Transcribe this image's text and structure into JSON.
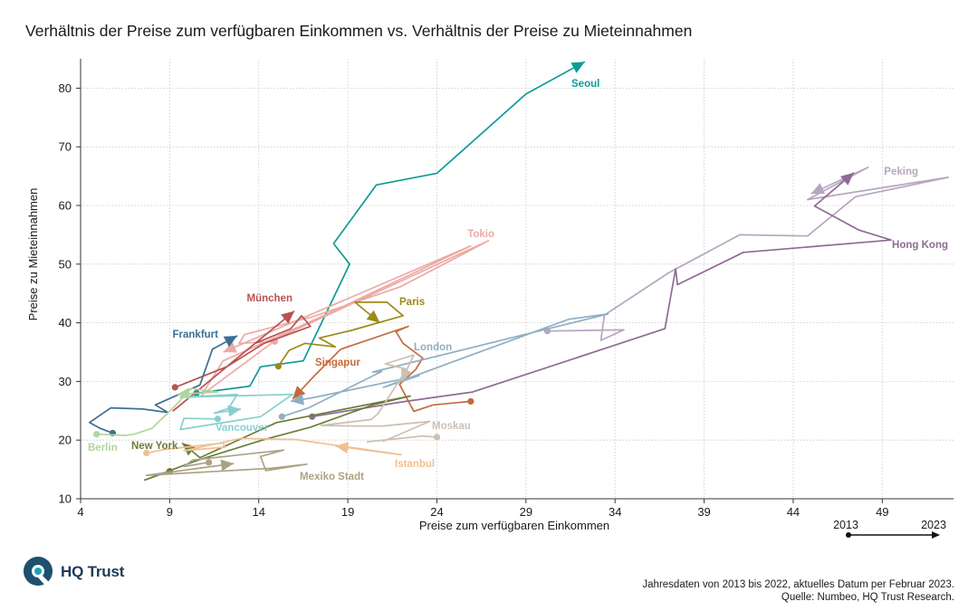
{
  "title": "Verhältnis der Preise zum verfügbaren Einkommen vs. Verhältnis der Preise zu Mieteinnahmen",
  "logo": {
    "text": "HQ Trust",
    "icon": "hq-trust-logo-icon"
  },
  "footnote": {
    "line1": "Jahresdaten von 2013 bis 2022, aktuelles Datum per Februar 2023.",
    "line2": "Quelle: Numbeo, HQ Trust Research."
  },
  "time_legend": {
    "start": "2013",
    "end": "2023"
  },
  "chart_data": {
    "type": "line",
    "title": "Verhältnis der Preise zum verfügbaren Einkommen vs. Verhältnis der Preise zu Mieteinnahmen",
    "xlabel": "Preise zum verfügbaren Einkommen",
    "ylabel": "Preise zu Mieteinnahmen",
    "xlim": [
      4,
      53
    ],
    "ylim": [
      10,
      85
    ],
    "xticks": [
      4,
      9,
      14,
      19,
      24,
      29,
      34,
      39,
      44,
      49
    ],
    "yticks": [
      10,
      20,
      30,
      40,
      50,
      60,
      70,
      80
    ],
    "grid": true,
    "series": [
      {
        "name": "Seoul",
        "color": "#0f9b95",
        "points": [
          [
            10.5,
            28
          ],
          [
            13.5,
            29.2
          ],
          [
            14.1,
            32.5
          ],
          [
            16.5,
            33.5
          ],
          [
            19.1,
            50
          ],
          [
            18.2,
            53.5
          ],
          [
            20.6,
            63.5
          ],
          [
            24,
            65.5
          ],
          [
            29,
            79
          ],
          [
            32.3,
            84.5
          ]
        ]
      },
      {
        "name": "Peking",
        "color": "#b7a6bf",
        "points": [
          [
            30.2,
            38.6
          ],
          [
            34.5,
            38.8
          ],
          [
            33.2,
            37
          ],
          [
            33.4,
            41.3
          ],
          [
            37,
            48.5
          ],
          [
            41,
            55
          ],
          [
            44.8,
            54.8
          ],
          [
            47.5,
            61.5
          ],
          [
            52.7,
            64.8
          ],
          [
            44.8,
            61
          ],
          [
            48.2,
            66.5
          ],
          [
            45,
            62
          ]
        ]
      },
      {
        "name": "Hong Kong",
        "color": "#8e6b93",
        "points": [
          [
            17,
            24
          ],
          [
            22,
            26.5
          ],
          [
            26,
            28.2
          ],
          [
            36.8,
            39
          ],
          [
            37.4,
            49.2
          ],
          [
            37.5,
            46.5
          ],
          [
            41.2,
            52
          ],
          [
            49.5,
            54.1
          ],
          [
            47.7,
            55.8
          ],
          [
            45.2,
            59.9
          ],
          [
            47.4,
            65.6
          ]
        ]
      },
      {
        "name": "Tokio",
        "color": "#ecaaa4",
        "points": [
          [
            14.9,
            36.8
          ],
          [
            12.9,
            36.5
          ],
          [
            13.2,
            38
          ],
          [
            17,
            41
          ],
          [
            22,
            46.2
          ],
          [
            26.9,
            54
          ],
          [
            15.2,
            37.6
          ],
          [
            10.8,
            27.7
          ],
          [
            12,
            33.5
          ],
          [
            18.2,
            42
          ],
          [
            25.9,
            53.1
          ],
          [
            12,
            35
          ]
        ]
      },
      {
        "name": "München",
        "color": "#b85250",
        "points": [
          [
            9.3,
            29
          ],
          [
            12.2,
            32.5
          ],
          [
            14.3,
            36.5
          ],
          [
            16.2,
            38.6
          ],
          [
            16.9,
            39.4
          ],
          [
            16.4,
            41.2
          ],
          [
            15.8,
            39
          ],
          [
            13.8,
            36.5
          ],
          [
            9.2,
            25
          ],
          [
            16,
            42
          ]
        ]
      },
      {
        "name": "Frankfurt",
        "color": "#3c6f91",
        "points": [
          [
            5.8,
            21.2
          ],
          [
            5.1,
            22
          ],
          [
            4.5,
            23
          ],
          [
            5.7,
            25.5
          ],
          [
            7.5,
            25.3
          ],
          [
            8.9,
            24.7
          ],
          [
            8.2,
            26
          ],
          [
            10.7,
            29.4
          ],
          [
            11.4,
            35.5
          ],
          [
            12.8,
            37.8
          ]
        ]
      },
      {
        "name": "Paris",
        "color": "#9d8a1a",
        "points": [
          [
            15.1,
            32.6
          ],
          [
            15.7,
            35.3
          ],
          [
            16.6,
            36.5
          ],
          [
            18.3,
            35.9
          ],
          [
            17.4,
            37.4
          ],
          [
            19.2,
            38.7
          ],
          [
            22.1,
            41.2
          ],
          [
            21.2,
            43.5
          ],
          [
            19.4,
            43.5
          ],
          [
            20.8,
            40
          ]
        ]
      },
      {
        "name": "Singapur",
        "color": "#c56a3a",
        "points": [
          [
            25.9,
            26.6
          ],
          [
            23.8,
            26
          ],
          [
            22.7,
            24.9
          ],
          [
            21.9,
            29.5
          ],
          [
            22.8,
            32
          ],
          [
            23.2,
            34
          ],
          [
            22.1,
            36.5
          ],
          [
            21.7,
            38.5
          ],
          [
            22.4,
            39.4
          ],
          [
            18.6,
            35.5
          ],
          [
            17.2,
            31.2
          ],
          [
            15.9,
            27
          ]
        ]
      },
      {
        "name": "London",
        "color": "#8fafc4",
        "points": [
          [
            15.3,
            24
          ],
          [
            16.8,
            25.5
          ],
          [
            20.9,
            31.7
          ],
          [
            20.4,
            31.6
          ],
          [
            33.6,
            41.5
          ],
          [
            31.4,
            40.6
          ],
          [
            21,
            29
          ],
          [
            23,
            31
          ],
          [
            17,
            27.2
          ],
          [
            15.8,
            26.6
          ]
        ]
      },
      {
        "name": "Vancouver",
        "color": "#87cfce",
        "points": [
          [
            11.7,
            23.6
          ],
          [
            9.8,
            23.7
          ],
          [
            9.6,
            21.8
          ],
          [
            14.1,
            24
          ],
          [
            15.9,
            27.8
          ],
          [
            9.6,
            27.3
          ],
          [
            12.8,
            27.8
          ],
          [
            12.3,
            25.4
          ],
          [
            11.5,
            24.6
          ],
          [
            13,
            25.3
          ]
        ]
      },
      {
        "name": "Berlin",
        "color": "#b1d69c",
        "points": [
          [
            4.9,
            21
          ],
          [
            6.5,
            20.8
          ],
          [
            7,
            21
          ],
          [
            8,
            22
          ],
          [
            9.3,
            25.8
          ],
          [
            10.2,
            28.8
          ],
          [
            11.7,
            28.2
          ],
          [
            9.4,
            27.8
          ]
        ]
      },
      {
        "name": "New York",
        "color": "#6a7d3a",
        "points": [
          [
            9,
            14.7
          ],
          [
            7.6,
            13.2
          ],
          [
            10.5,
            16.5
          ],
          [
            14.2,
            20
          ],
          [
            16.9,
            22.2
          ],
          [
            20.4,
            26
          ],
          [
            22.5,
            27.5
          ],
          [
            15,
            23
          ],
          [
            10.7,
            17
          ],
          [
            9.7,
            19.5
          ]
        ]
      },
      {
        "name": "Moskau",
        "color": "#cdbfb1",
        "points": [
          [
            24,
            20.5
          ],
          [
            23.2,
            20.7
          ],
          [
            20.1,
            19.7
          ],
          [
            21,
            20
          ],
          [
            21,
            19.8
          ],
          [
            23.6,
            23.2
          ],
          [
            21,
            22.4
          ],
          [
            19.3,
            22.4
          ],
          [
            17.5,
            22.5
          ],
          [
            20.3,
            23.5
          ],
          [
            20.7,
            24.5
          ],
          [
            22.3,
            32.1
          ],
          [
            21.1,
            33
          ],
          [
            22.7,
            34.5
          ],
          [
            22,
            30
          ]
        ]
      },
      {
        "name": "Mexiko Stadt",
        "color": "#aba286",
        "points": [
          [
            11.2,
            16.2
          ],
          [
            9.8,
            15.5
          ],
          [
            10.3,
            16.6
          ],
          [
            15.4,
            18.3
          ],
          [
            14.1,
            17.2
          ],
          [
            14.4,
            14.8
          ],
          [
            16.7,
            15.9
          ],
          [
            14.7,
            15.2
          ],
          [
            7.7,
            14
          ],
          [
            12.6,
            16
          ]
        ]
      },
      {
        "name": "Istanbul",
        "color": "#f0bf92",
        "points": [
          [
            7.7,
            17.8
          ],
          [
            8.7,
            18.4
          ],
          [
            12,
            19.5
          ],
          [
            12.1,
            18.8
          ],
          [
            9.8,
            18.2
          ],
          [
            13,
            20.3
          ],
          [
            16.1,
            20.1
          ],
          [
            22,
            17.5
          ],
          [
            18.3,
            19
          ]
        ]
      }
    ]
  }
}
